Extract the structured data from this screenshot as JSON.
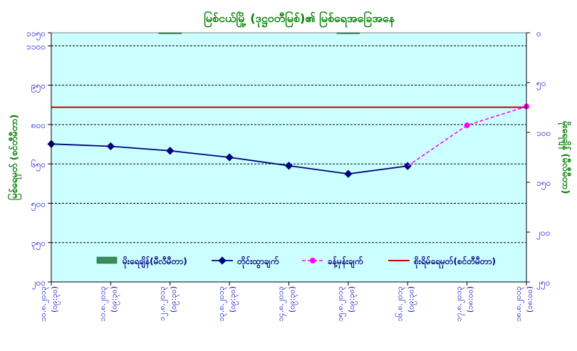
{
  "chart_data": {
    "type": "line",
    "title": "မြစ်ငယ်မြို့ (ဒုဋ္ဌဝတီမြစ်)၏ မြစ်ရေအခြေအနေ",
    "ylabel": "မြစ်ရေမှတ် (စင်တီမီတာ)",
    "y2label": "မိုးရေချိန် (မီလီမီတာ)",
    "ylim": [
      200,
      1150
    ],
    "y_ticks": [
      200,
      350,
      500,
      650,
      800,
      950,
      1100,
      1150
    ],
    "y_tick_labels": [
      "၂၀၀",
      "၃၅၀",
      "၅၀၀",
      "၆၅၀",
      "၈၀၀",
      "၉၅၀",
      "၁၁၀၀",
      "၁၁၅၀"
    ],
    "y2lim": [
      250,
      0
    ],
    "y2_ticks": [
      0,
      50,
      100,
      150,
      200,
      250
    ],
    "y2_tick_labels": [
      "၀",
      "၅၀",
      "၁၀၀",
      "၁၅၀",
      "၂၀၀",
      "၂၅၀"
    ],
    "categories": [
      "၁၀.၈.၂၀၁၃ (၀၉:၃၀)",
      "၁၁.၈.၂၀၁၃ (၀၉:၃၀)",
      "၁၂.၈.၂၀၁၃ (၀၉:၃၀)",
      "၁၃.၈.၂၀၁၃ (၀၉:၃၀)",
      "၁၄.၈.၂၀၁၃ (၀၉:၃၀)",
      "၁၅.၈.၂၀၁၃ (၀၉:၃၀)",
      "၁၆.၈.၂၀၁၃ (၀၉:၃၀)",
      "၁၇.၈.၂၀၁၃ (၁၈:၀၀)",
      "၁၈.၈.၂၀၁၃ (၁၈:၀၀)"
    ],
    "series": [
      {
        "name": "မိုးရေချိန်(မီလီမီတာ)",
        "kind": "bar",
        "axis": "right",
        "color": "#3c8c5a",
        "values": [
          0,
          0,
          1,
          0,
          0,
          1,
          0,
          null,
          null
        ]
      },
      {
        "name": "တိုင်းထွာချက်",
        "kind": "line",
        "axis": "left",
        "color": "#000080",
        "values": [
          726,
          717,
          700,
          675,
          643,
          612,
          642,
          null,
          null
        ]
      },
      {
        "name": "ခန့်မှန်းချက်",
        "kind": "line-dashed",
        "axis": "left",
        "color": "#ff00ff",
        "values": [
          null,
          null,
          null,
          null,
          null,
          null,
          null,
          797,
          869
        ]
      },
      {
        "name": "စိုးရိမ်ရေမှတ်(စင်တီမီတာ)",
        "kind": "hline",
        "axis": "left",
        "color": "#cc0000",
        "value": 866
      }
    ],
    "grid": true,
    "legend": "bottom",
    "colors": {
      "plot_bg": "#ccffff",
      "title": "#008000",
      "tick_text": "#0000cc",
      "axis_title": "#008000"
    }
  }
}
